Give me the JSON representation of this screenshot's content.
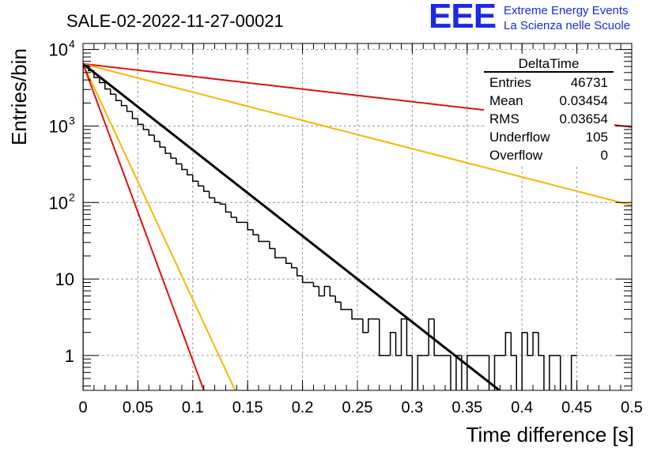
{
  "title": "SALE-02-2022-11-27-00021",
  "brand": {
    "logo": "EEE",
    "line1": "Extreme Energy Events",
    "line2": "La Scienza nelle Scuole",
    "color": "#1a2ae6"
  },
  "stats": {
    "name": "DeltaTime",
    "rows": [
      {
        "label": "Entries",
        "value": "46731"
      },
      {
        "label": "Mean",
        "value": "0.03454"
      },
      {
        "label": "RMS",
        "value": "0.03654"
      },
      {
        "label": "Underflow",
        "value": "105"
      },
      {
        "label": "Overflow",
        "value": "0"
      }
    ]
  },
  "chart_data": {
    "type": "histogram",
    "xlabel": "Time difference [s]",
    "ylabel": "Entries/bin",
    "xlim": [
      0,
      0.5
    ],
    "ylim": [
      0.35,
      12000
    ],
    "yscale": "log",
    "grid": true,
    "x_ticks": [
      {
        "value": 0,
        "label": "0"
      },
      {
        "value": 0.05,
        "label": "0.05"
      },
      {
        "value": 0.1,
        "label": "0.1"
      },
      {
        "value": 0.15,
        "label": "0.15"
      },
      {
        "value": 0.2,
        "label": "0.2"
      },
      {
        "value": 0.25,
        "label": "0.25"
      },
      {
        "value": 0.3,
        "label": "0.3"
      },
      {
        "value": 0.35,
        "label": "0.35"
      },
      {
        "value": 0.4,
        "label": "0.4"
      },
      {
        "value": 0.45,
        "label": "0.45"
      },
      {
        "value": 0.5,
        "label": "0.5"
      }
    ],
    "y_ticks": [
      {
        "value": 1,
        "label": "1"
      },
      {
        "value": 10,
        "label": "10"
      },
      {
        "value": 100,
        "label": "10",
        "exp": "2"
      },
      {
        "value": 1000,
        "label": "10",
        "exp": "3"
      },
      {
        "value": 10000,
        "label": "10",
        "exp": "4"
      }
    ],
    "histogram": {
      "bin_width": 0.005,
      "values": [
        6200,
        5300,
        4300,
        3700,
        3050,
        2600,
        2150,
        1850,
        1550,
        1250,
        1050,
        900,
        760,
        630,
        530,
        440,
        380,
        320,
        270,
        230,
        190,
        165,
        140,
        115,
        100,
        95,
        75,
        64,
        55,
        55,
        44,
        38,
        31,
        31,
        25,
        19,
        19,
        16,
        14,
        11,
        9,
        9,
        8,
        6,
        8,
        6,
        5,
        4,
        4,
        3,
        3,
        2,
        3,
        3,
        1,
        1,
        2,
        1,
        3,
        1,
        0,
        1,
        1,
        3,
        1,
        1,
        1,
        0,
        1,
        0,
        1,
        1,
        1,
        1,
        0,
        1,
        1,
        2,
        1,
        0,
        2,
        1,
        2,
        1,
        0,
        1,
        1,
        0,
        0,
        1
      ]
    },
    "fits": [
      {
        "color": "#e01010",
        "a": 6500,
        "tau": 0.263
      },
      {
        "color": "#f5b800",
        "a": 6500,
        "tau": 0.1174
      },
      {
        "color": "#000000",
        "a": 6500,
        "tau": 0.0386
      },
      {
        "color": "#f5b800",
        "a": 6500,
        "tau": 0.0141
      },
      {
        "color": "#e01010",
        "a": 6500,
        "tau": 0.0112
      }
    ]
  }
}
